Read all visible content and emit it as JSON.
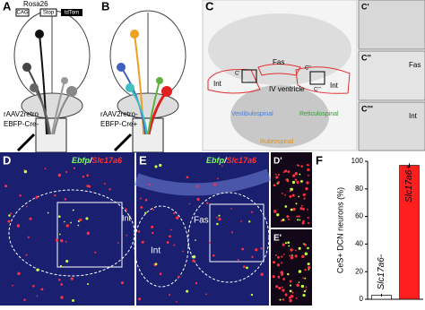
{
  "panels": {
    "A": {
      "letter": "A",
      "rosa": "Rosa26",
      "cag": "CAG",
      "stop": "Stop",
      "tdtom": "tdTom",
      "virus1": "rAAV2retro",
      "virus2": "EBFP-Cre-"
    },
    "B": {
      "letter": "B",
      "virus1": "rAAV2retro-",
      "virus2": "EBFP-Cre+"
    },
    "C": {
      "letter": "C",
      "int_left": "Int",
      "fas": "Fas",
      "int_right": "Int",
      "c1": "C'",
      "c2": "C''",
      "c3": "C'''",
      "ventricle": "IV ventricle",
      "vestibulo": "Vestibulospinal",
      "reticulo": "Reticulospinal",
      "rubro": "Rubrospinal"
    },
    "C1": {
      "letter": "C'"
    },
    "C2": {
      "letter": "C''",
      "label": "Fas"
    },
    "C3": {
      "letter": "C'''",
      "label": "Int"
    },
    "D": {
      "letter": "D",
      "ebfp": "Ebfp",
      "slash": "/",
      "slc": "Slc17a6",
      "int": "Int"
    },
    "E": {
      "letter": "E",
      "ebfp": "Ebfp",
      "slash": "/",
      "slc": "Slc17a6",
      "fas": "Fas",
      "int": "Int"
    },
    "D1": {
      "letter": "D'"
    },
    "E1": {
      "letter": "E'"
    },
    "F": {
      "letter": "F"
    }
  },
  "chart_data": {
    "type": "bar",
    "y_label": "CeS+ DCN neurons (%)",
    "categories": [
      "Slc17a6-",
      "Slc17a6+"
    ],
    "values": [
      3,
      97
    ],
    "errors": [
      1,
      1.5
    ],
    "colors": [
      "#ffffff",
      "#ff1f1f"
    ],
    "ylim": [
      0,
      100
    ],
    "yticks": [
      0,
      20,
      40,
      60,
      80,
      100
    ]
  }
}
